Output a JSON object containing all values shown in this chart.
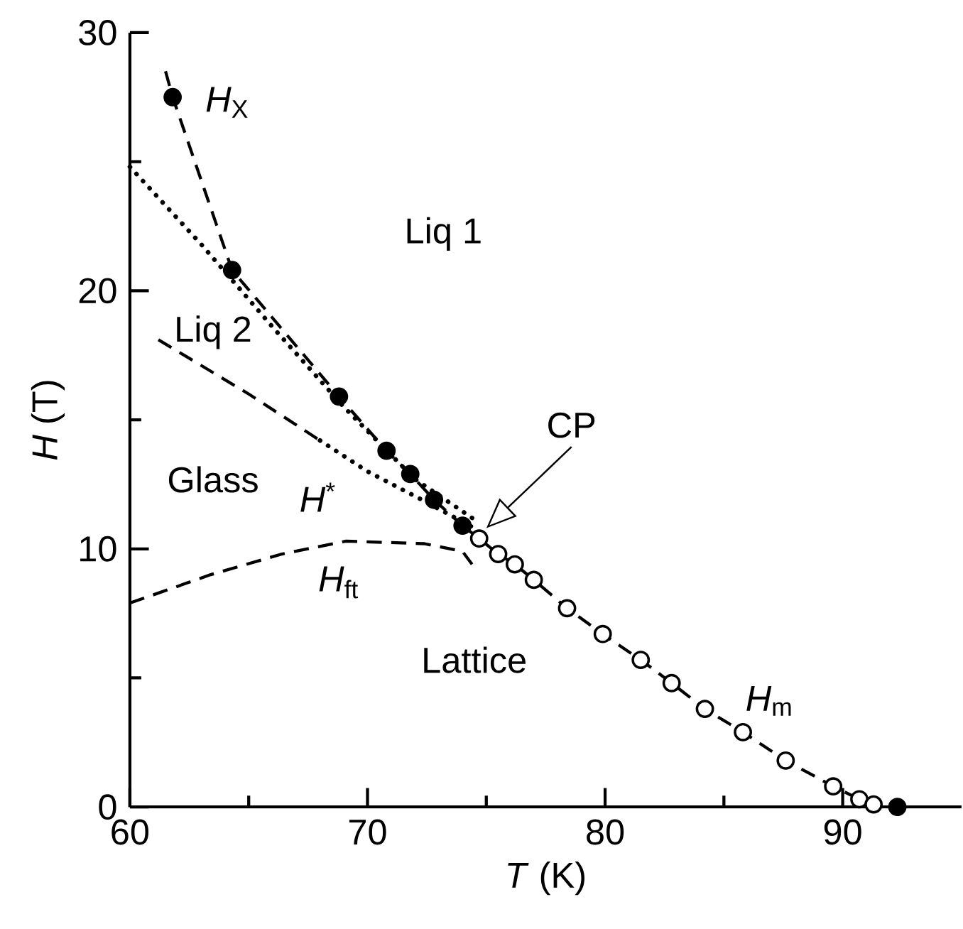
{
  "chart_data": {
    "type": "line",
    "xlabel": "*T* (K)",
    "ylabel": "*H* (T)",
    "xlim": [
      60,
      95
    ],
    "ylim": [
      0,
      30
    ],
    "xticks": [
      60,
      {
        "value": 65,
        "label": null
      },
      70,
      {
        "value": 75,
        "label": null
      },
      80,
      {
        "value": 85,
        "label": null
      },
      90
    ],
    "yticks": [
      0,
      {
        "value": 5,
        "label": null
      },
      10,
      {
        "value": 15,
        "label": null
      },
      20,
      {
        "value": 25,
        "label": null
      },
      30
    ],
    "series": [
      {
        "color": "#000000",
        "line_style": "dashed",
        "marker": "none",
        "x": [
          61.5,
          61.8,
          64.3,
          68.8,
          70.8,
          71.8,
          72.8,
          74.0
        ],
        "values": [
          28.5,
          27.5,
          20.8,
          15.9,
          13.8,
          12.9,
          11.9,
          10.9
        ]
      },
      {
        "color": "#000000",
        "line_style": "dotted",
        "marker": "none",
        "x": [
          60.0,
          63.0,
          66.0,
          69.0,
          72.0,
          74.4
        ],
        "values": [
          24.8,
          21.8,
          18.6,
          15.5,
          12.7,
          11.2
        ]
      },
      {
        "color": "#000000",
        "line_style": "dashed",
        "marker": "none",
        "x": [
          61.2,
          65.0,
          68.0
        ],
        "values": [
          18.1,
          16.0,
          14.2
        ]
      },
      {
        "color": "#000000",
        "line_style": "dotted",
        "marker": "none",
        "x": [
          68.0,
          70.0,
          72.5,
          74.5
        ],
        "values": [
          14.2,
          13.0,
          11.8,
          10.8
        ]
      },
      {
        "color": "#000000",
        "line_style": "dashed",
        "marker": "none",
        "x": [
          60.0,
          63.4,
          66.4,
          69.1,
          72.4,
          74.0,
          74.4
        ],
        "values": [
          7.9,
          9.0,
          9.8,
          10.3,
          10.2,
          9.9,
          9.4
        ]
      },
      {
        "color": "#000000",
        "line_style": "dashed",
        "marker": "none",
        "x": [
          74.0,
          74.7,
          75.5,
          76.2,
          77.0,
          78.4,
          79.9,
          81.5,
          82.8,
          84.2,
          85.8,
          87.6,
          89.6,
          90.7,
          91.3,
          92.3
        ],
        "values": [
          10.9,
          10.4,
          9.8,
          9.4,
          8.8,
          7.7,
          6.7,
          5.7,
          4.8,
          3.8,
          2.9,
          1.8,
          0.8,
          0.3,
          0.1,
          0.0
        ]
      },
      {
        "type": "scatter",
        "color": "#000000",
        "marker": "circle",
        "x": [
          61.8,
          64.3,
          68.8,
          70.8,
          71.8,
          72.8,
          74.0,
          92.3
        ],
        "values": [
          27.5,
          20.8,
          15.9,
          13.8,
          12.9,
          11.9,
          10.9,
          0.0
        ]
      },
      {
        "type": "scatter",
        "color": "#ffffff",
        "marker": "circle",
        "x": [
          74.7,
          75.5,
          76.2,
          77.0,
          78.4,
          79.9,
          81.5,
          82.8,
          84.2,
          85.8,
          87.6,
          89.6,
          90.7,
          91.3
        ],
        "values": [
          10.4,
          9.8,
          9.4,
          8.8,
          7.7,
          6.7,
          5.7,
          4.8,
          3.8,
          2.9,
          1.8,
          0.8,
          0.3,
          0.1
        ]
      }
    ],
    "annotations": [
      "*H*$_{X}$",
      "Liq 1",
      "Liq 2",
      "Glass",
      "*H*$^{*}$",
      "*H*$_{ft}$",
      "Lattice",
      "*H*$_{m}$",
      "CP"
    ]
  }
}
